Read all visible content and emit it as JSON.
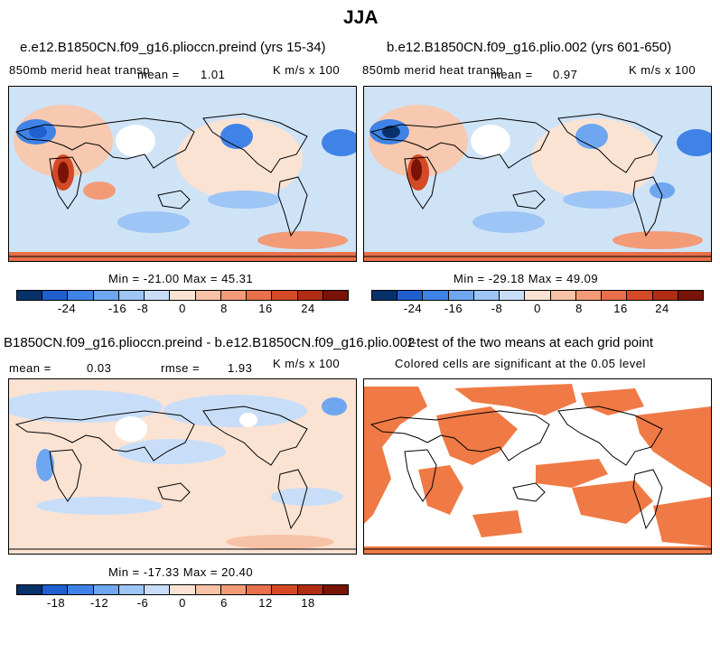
{
  "figure": {
    "title": "JJA"
  },
  "panels": [
    {
      "title": "e.e12.B1850CN.f09_g16.plioccn.preind (yrs 15-34)",
      "variable": "850mb merid heat transp",
      "mean_label": "mean =",
      "mean_value": "1.01",
      "units": "K m/s x 100",
      "stats": "Min = -21.00 Max = 45.31",
      "ticks": [
        "-24",
        "-16",
        "-8",
        "0",
        "8",
        "16",
        "24"
      ]
    },
    {
      "title": "b.e12.B1850CN.f09_g16.plio.002 (yrs 601-650)",
      "variable": "850mb merid heat transp",
      "mean_label": "mean =",
      "mean_value": "0.97",
      "units": "K m/s x 100",
      "stats": "Min = -29.18 Max = 49.09",
      "ticks": [
        "-24",
        "-16",
        "-8",
        "0",
        "8",
        "16",
        "24"
      ]
    },
    {
      "title": "B1850CN.f09_g16.plioccn.preind - b.e12.B1850CN.f09_g16.plio.002",
      "mean_label": "mean =",
      "mean_value": "0.03",
      "rmse_label": "rmse =",
      "rmse_value": "1.93",
      "units": "K m/s x 100",
      "stats": "Min = -17.33 Max = 20.40",
      "ticks": [
        "-18",
        "-12",
        "-6",
        "0",
        "6",
        "12",
        "18"
      ]
    },
    {
      "title": "t-test of the two means at each grid point",
      "subtitle": "Colored cells are significant at the 0.05 level"
    }
  ],
  "colorbar_colors": [
    "#08306b",
    "#1f5fd0",
    "#3f83e6",
    "#6ea6f0",
    "#9dc5f5",
    "#c8def8",
    "#fbe3d4",
    "#f8c2a6",
    "#f39b77",
    "#e8704a",
    "#d44a26",
    "#b02c12",
    "#7a1307"
  ],
  "colors": {
    "land_outline": "#000000",
    "significance": "#ef7a45"
  }
}
